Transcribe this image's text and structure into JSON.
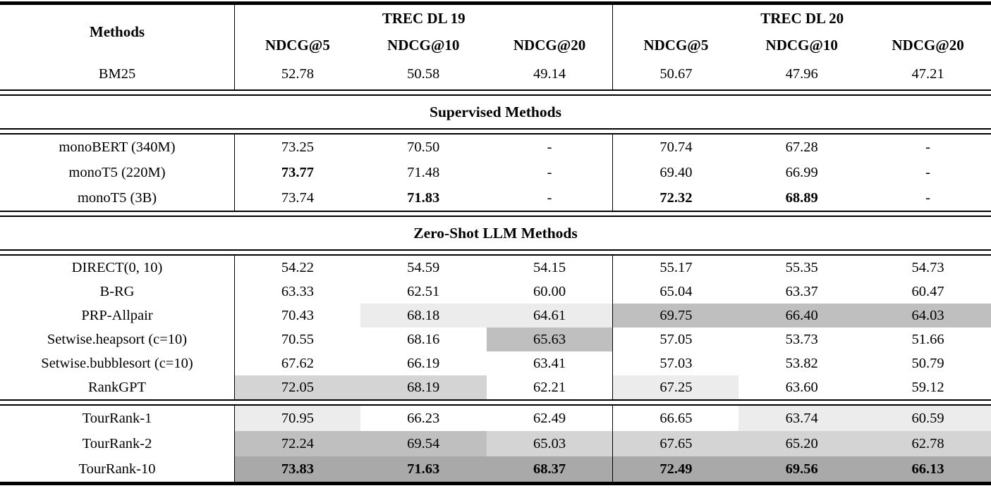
{
  "table": {
    "methods_header": "Methods",
    "groups": [
      {
        "label": "TREC DL 19",
        "subheaders": [
          "NDCG@5",
          "NDCG@10",
          "NDCG@20"
        ]
      },
      {
        "label": "TREC DL 20",
        "subheaders": [
          "NDCG@5",
          "NDCG@10",
          "NDCG@20"
        ]
      }
    ],
    "shading_colors": {
      "light": "#ececec",
      "mid_light": "#d4d4d4",
      "mid": "#bfbfbf",
      "dark": "#a9a9a9"
    },
    "chart_data": {
      "type": "table",
      "title": "",
      "columns": [
        "Methods",
        "TREC DL 19 NDCG@5",
        "TREC DL 19 NDCG@10",
        "TREC DL 19 NDCG@20",
        "TREC DL 20 NDCG@5",
        "TREC DL 20 NDCG@10",
        "TREC DL 20 NDCG@20"
      ]
    },
    "sections": [
      {
        "type": "rows",
        "rows": [
          {
            "method": "BM25",
            "cells": [
              {
                "v": "52.78"
              },
              {
                "v": "50.58"
              },
              {
                "v": "49.14"
              },
              {
                "v": "50.67"
              },
              {
                "v": "47.96"
              },
              {
                "v": "47.21"
              }
            ]
          }
        ]
      },
      {
        "type": "banner",
        "label": "Supervised Methods"
      },
      {
        "type": "rows",
        "rows": [
          {
            "method": "monoBERT (340M)",
            "cells": [
              {
                "v": "73.25"
              },
              {
                "v": "70.50"
              },
              {
                "v": "-"
              },
              {
                "v": "70.74"
              },
              {
                "v": "67.28"
              },
              {
                "v": "-"
              }
            ]
          },
          {
            "method": "monoT5 (220M)",
            "cells": [
              {
                "v": "73.77",
                "bold": true
              },
              {
                "v": "71.48"
              },
              {
                "v": "-"
              },
              {
                "v": "69.40"
              },
              {
                "v": "66.99"
              },
              {
                "v": "-"
              }
            ]
          },
          {
            "method": "monoT5 (3B)",
            "cells": [
              {
                "v": "73.74"
              },
              {
                "v": "71.83",
                "bold": true
              },
              {
                "v": "-"
              },
              {
                "v": "72.32",
                "bold": true
              },
              {
                "v": "68.89",
                "bold": true
              },
              {
                "v": "-"
              }
            ]
          }
        ]
      },
      {
        "type": "banner",
        "label": "Zero-Shot LLM Methods"
      },
      {
        "type": "rows",
        "rows": [
          {
            "method": "DIRECT(0, 10)",
            "cells": [
              {
                "v": "54.22"
              },
              {
                "v": "54.59"
              },
              {
                "v": "54.15"
              },
              {
                "v": "55.17"
              },
              {
                "v": "55.35"
              },
              {
                "v": "54.73"
              }
            ]
          },
          {
            "method": "B-RG",
            "cells": [
              {
                "v": "63.33"
              },
              {
                "v": "62.51"
              },
              {
                "v": "60.00"
              },
              {
                "v": "65.04"
              },
              {
                "v": "63.37"
              },
              {
                "v": "60.47"
              }
            ]
          },
          {
            "method": "PRP-Allpair",
            "cells": [
              {
                "v": "70.43"
              },
              {
                "v": "68.18",
                "bg": "light"
              },
              {
                "v": "64.61",
                "bg": "light"
              },
              {
                "v": "69.75",
                "bg": "mid"
              },
              {
                "v": "66.40",
                "bg": "mid"
              },
              {
                "v": "64.03",
                "bg": "mid"
              }
            ]
          },
          {
            "method": "Setwise.heapsort (c=10)",
            "cells": [
              {
                "v": "70.55"
              },
              {
                "v": "68.16"
              },
              {
                "v": "65.63",
                "bg": "mid"
              },
              {
                "v": "57.05"
              },
              {
                "v": "53.73"
              },
              {
                "v": "51.66"
              }
            ]
          },
          {
            "method": "Setwise.bubblesort (c=10)",
            "cells": [
              {
                "v": "67.62"
              },
              {
                "v": "66.19"
              },
              {
                "v": "63.41"
              },
              {
                "v": "57.03"
              },
              {
                "v": "53.82"
              },
              {
                "v": "50.79"
              }
            ]
          },
          {
            "method": "RankGPT",
            "cells": [
              {
                "v": "72.05",
                "bg": "mid_light"
              },
              {
                "v": "68.19",
                "bg": "mid_light"
              },
              {
                "v": "62.21"
              },
              {
                "v": "67.25",
                "bg": "light"
              },
              {
                "v": "63.60"
              },
              {
                "v": "59.12"
              }
            ]
          }
        ]
      },
      {
        "type": "rows",
        "rows": [
          {
            "method": "TourRank-1",
            "cells": [
              {
                "v": "70.95",
                "bg": "light"
              },
              {
                "v": "66.23"
              },
              {
                "v": "62.49"
              },
              {
                "v": "66.65"
              },
              {
                "v": "63.74",
                "bg": "light"
              },
              {
                "v": "60.59",
                "bg": "light"
              }
            ]
          },
          {
            "method": "TourRank-2",
            "cells": [
              {
                "v": "72.24",
                "bg": "mid"
              },
              {
                "v": "69.54",
                "bg": "mid"
              },
              {
                "v": "65.03",
                "bg": "mid_light"
              },
              {
                "v": "67.65",
                "bg": "mid_light"
              },
              {
                "v": "65.20",
                "bg": "mid_light"
              },
              {
                "v": "62.78",
                "bg": "mid_light"
              }
            ]
          },
          {
            "method": "TourRank-10",
            "cells": [
              {
                "v": "73.83",
                "bold": true,
                "bg": "dark"
              },
              {
                "v": "71.63",
                "bold": true,
                "bg": "dark"
              },
              {
                "v": "68.37",
                "bold": true,
                "bg": "dark"
              },
              {
                "v": "72.49",
                "bold": true,
                "bg": "dark"
              },
              {
                "v": "69.56",
                "bold": true,
                "bg": "dark"
              },
              {
                "v": "66.13",
                "bold": true,
                "bg": "dark"
              }
            ]
          }
        ]
      }
    ]
  }
}
